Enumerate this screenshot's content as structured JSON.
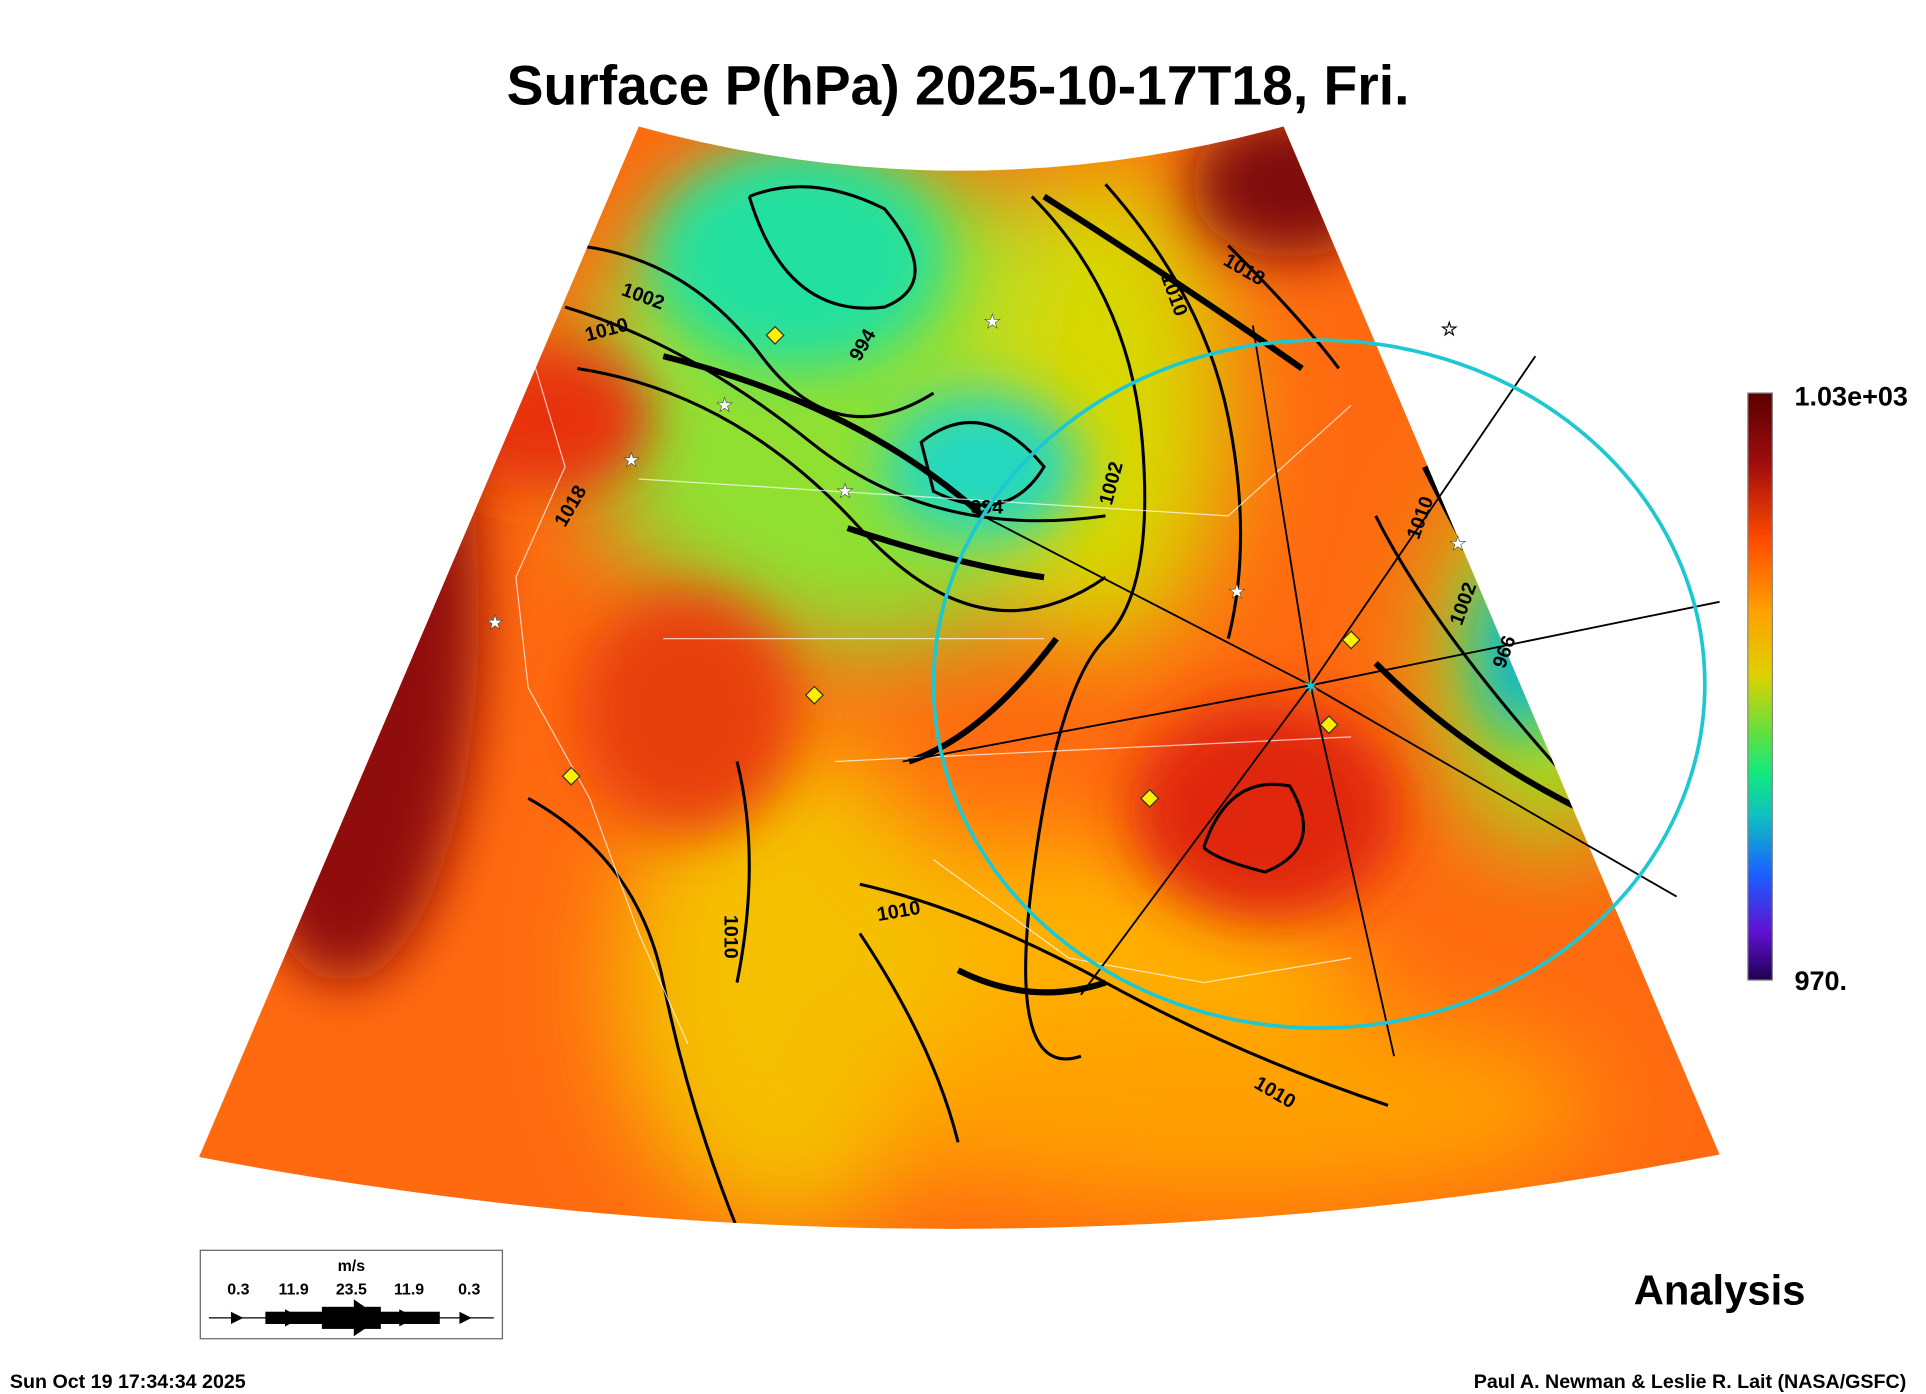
{
  "title": "Surface P(hPa) 2025-10-17T18, Fri.",
  "colorbar": {
    "max_label": "1.03e+03",
    "min_label": "970.",
    "min": 970,
    "max": 1030
  },
  "wind_legend": {
    "unit": "m/s",
    "labels": [
      "0.3",
      "11.9",
      "23.5",
      "11.9",
      "0.3"
    ]
  },
  "contour_labels": [
    "1002",
    "1010",
    "994",
    "1018",
    "1018",
    "1010",
    "994",
    "1002",
    "1010",
    "1002",
    "966",
    "1010",
    "1010",
    "1010"
  ],
  "product_label": "Analysis",
  "timestamp": "Sun Oct 19 17:34:34 2025",
  "credit": "Paul A. Newman & Leslie R. Lait (NASA/GSFC)",
  "colors": {
    "ring": "#1ec8d2",
    "marker": "#ffee00",
    "low": "#1fd8b0",
    "high": "#7a0a0a"
  }
}
